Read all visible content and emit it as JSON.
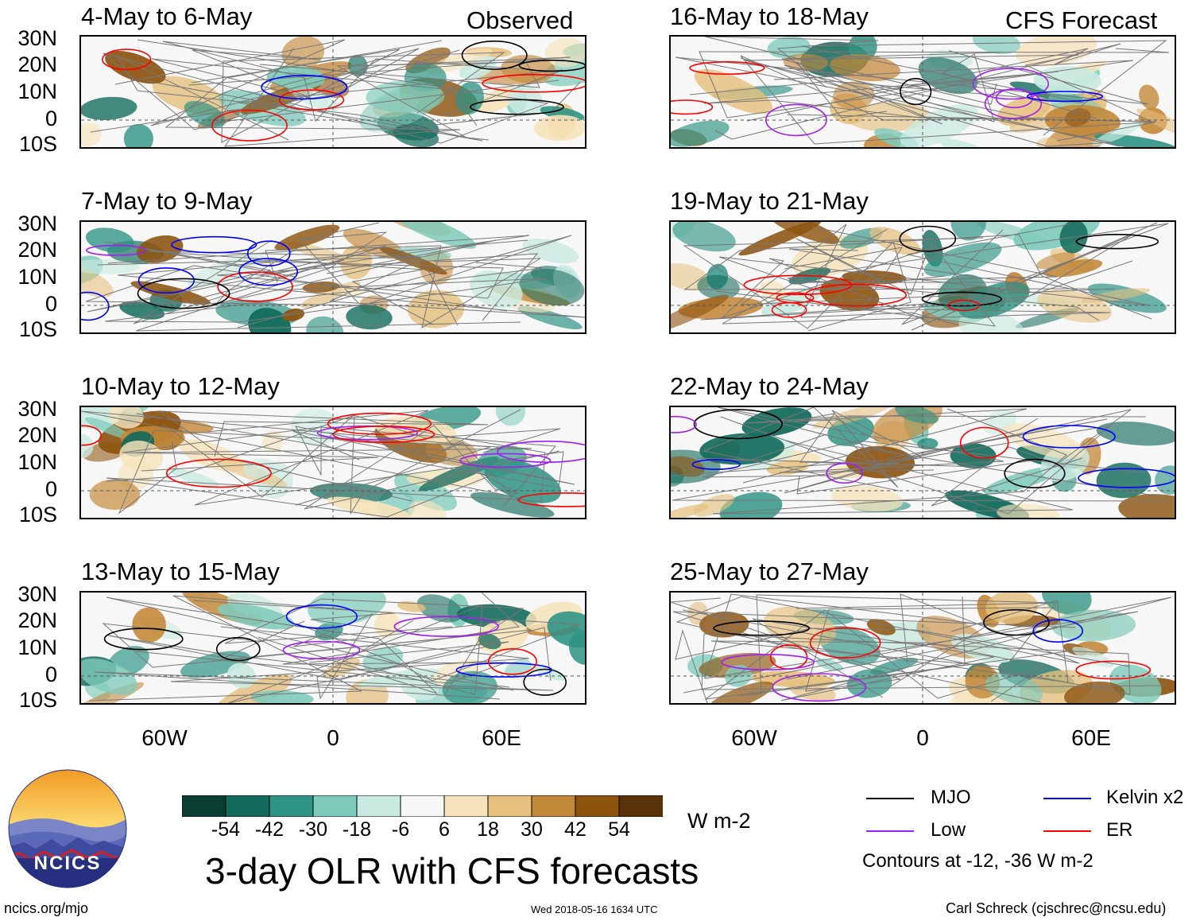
{
  "header": {
    "observed_label": "Observed",
    "forecast_label": "CFS Forecast"
  },
  "panels": {
    "left": [
      {
        "title": "4-May to 6-May"
      },
      {
        "title": "7-May to 9-May"
      },
      {
        "title": "10-May to 12-May"
      },
      {
        "title": "13-May to 15-May"
      }
    ],
    "right": [
      {
        "title": "16-May to 18-May"
      },
      {
        "title": "19-May to 21-May"
      },
      {
        "title": "22-May to 24-May"
      },
      {
        "title": "25-May to 27-May"
      }
    ]
  },
  "axes": {
    "lat_labels": [
      "30N",
      "20N",
      "10N",
      "0",
      "10S"
    ],
    "lon_labels": [
      "60W",
      "0",
      "60E"
    ]
  },
  "colorbar": {
    "labels": [
      "-54",
      "-42",
      "-30",
      "-18",
      "-6",
      "6",
      "18",
      "30",
      "42",
      "54"
    ],
    "colors": [
      "#0b3d33",
      "#136b5c",
      "#2e9384",
      "#7fcbbb",
      "#c9eae1",
      "#f7f7f7",
      "#f6e3bb",
      "#e5c07f",
      "#c4883a",
      "#8d5410",
      "#5a3208"
    ],
    "units": "W m-2"
  },
  "title": "3-day OLR with CFS forecasts",
  "legend": {
    "items": [
      {
        "label": "MJO",
        "color": "#000000"
      },
      {
        "label": "Kelvin x2",
        "color": "#0000ff"
      },
      {
        "label": "Low",
        "color": "#a020f0"
      },
      {
        "label": "ER",
        "color": "#ff0000"
      }
    ],
    "note": "Contours at -12, -36 W m-2"
  },
  "logo": {
    "text": "NCICS"
  },
  "footer": {
    "website": "ncics.org/mjo",
    "timestamp": "Wed 2018-05-16 1634 UTC",
    "credit": "Carl Schreck (cjschrec@ncsu.edu)"
  }
}
